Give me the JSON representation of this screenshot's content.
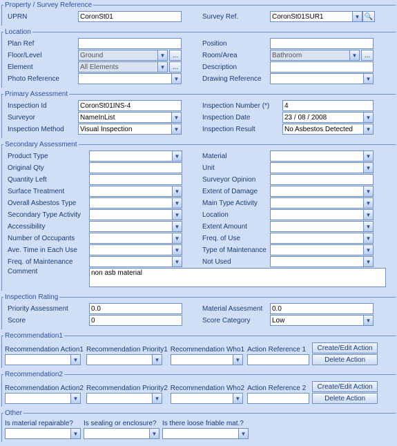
{
  "propSurvey": {
    "legend": "Property / Survey  Reference",
    "uprn_label": "UPRN",
    "uprn": "CoronSt01",
    "survey_ref_label": "Survey Ref.",
    "survey_ref": "CoronSt01SUR1"
  },
  "location": {
    "legend": "Location",
    "plan_ref_label": "Plan Ref",
    "plan_ref": "",
    "position_label": "Position",
    "position": "",
    "floor_label": "Floor/Level",
    "floor": "Ground",
    "room_label": "Room/Area",
    "room": "Bathroom",
    "element_label": "Element",
    "element": "All Elements",
    "description_label": "Description",
    "description": "",
    "photo_label": "Photo Reference",
    "photo": "",
    "drawing_label": "Drawing Reference",
    "drawing": ""
  },
  "primary": {
    "legend": "Primary Assessment",
    "insp_id_label": "Inspection Id",
    "insp_id": "CoronSt01INS-4",
    "insp_num_label": "Inspection Number (*)",
    "insp_num": "4",
    "surveyor_label": "Surveyor",
    "surveyor": "NameInList",
    "insp_date_label": "Inspection Date",
    "insp_date": "23  /  08  /  2008",
    "method_label": "Inspection Method",
    "method": "Visual Inspection",
    "result_label": "Inspection Result",
    "result": "No Asbestos Detected"
  },
  "secondary": {
    "legend": "Secondary Assessment",
    "product_label": "Product Type",
    "product": "",
    "material_label": "Material",
    "material": "",
    "oqty_label": "Original Qty",
    "oqty": "",
    "unit_label": "Unit",
    "unit": "",
    "qleft_label": "Quantity Left",
    "qleft": "",
    "opinion_label": "Surveyor Opinion",
    "opinion": "",
    "surface_label": "Surface Treatment",
    "surface": "",
    "extent_label": "Extent of Damage",
    "extent": "",
    "overall_label": "Overall Asbestos Type",
    "overall": "",
    "maintype_label": "Main Type Activity",
    "maintype": "",
    "sectype_label": "Secondary Type Activity",
    "sectype": "",
    "loc_label": "Location",
    "loc": "",
    "access_label": "Accessibility",
    "access": "",
    "extamt_label": "Extent Amount",
    "extamt": "",
    "occ_label": "Number of Occupants",
    "occ": "",
    "freq_label": "Freq. of Use",
    "freq": "",
    "avetime_label": "Ave. Time in Each Use",
    "avetime": "",
    "tmaint_label": "Type of Maintenance",
    "tmaint": "",
    "fmaint_label": "Freq. of Maintenance",
    "fmaint": "",
    "notused_label": "Not Used",
    "notused": "",
    "comment_label": "Comment",
    "comment": "non asb material"
  },
  "rating": {
    "legend": "Inspection Rating",
    "priority_label": "Priority Assessment",
    "priority": "0.0",
    "material_label": "Material Assesment",
    "material": "0.0",
    "score_label": "Score",
    "score": "0",
    "scorecat_label": "Score Category",
    "scorecat": "Low"
  },
  "rec1": {
    "legend": "Recommendation1",
    "action_label": "Recommendation Action1",
    "action": "",
    "priority_label": "Recommendation Priority1",
    "priority": "",
    "who_label": "Recommendation Who1",
    "who": "",
    "ref_label": "Action Reference 1",
    "ref": "",
    "create": "Create/Edit Action",
    "delete": "Delete Action"
  },
  "rec2": {
    "legend": "Recommendation2",
    "action_label": "Recommendation Action2",
    "action": "",
    "priority_label": "Recommendation Priority2",
    "priority": "",
    "who_label": "Recommendation Who2",
    "who": "",
    "ref_label": "Action Reference 2",
    "ref": "",
    "create": "Create/Edit Action",
    "delete": "Delete Action"
  },
  "other": {
    "legend": "Other",
    "repair_label": "Is material repairable?",
    "repair": "",
    "seal_label": "Is sealing or enclosure?",
    "seal": "",
    "friable_label": "Is there loose friable mat.?",
    "friable": ""
  },
  "glyphs": {
    "down": "▼",
    "dots": "...",
    "search": "🔍"
  }
}
